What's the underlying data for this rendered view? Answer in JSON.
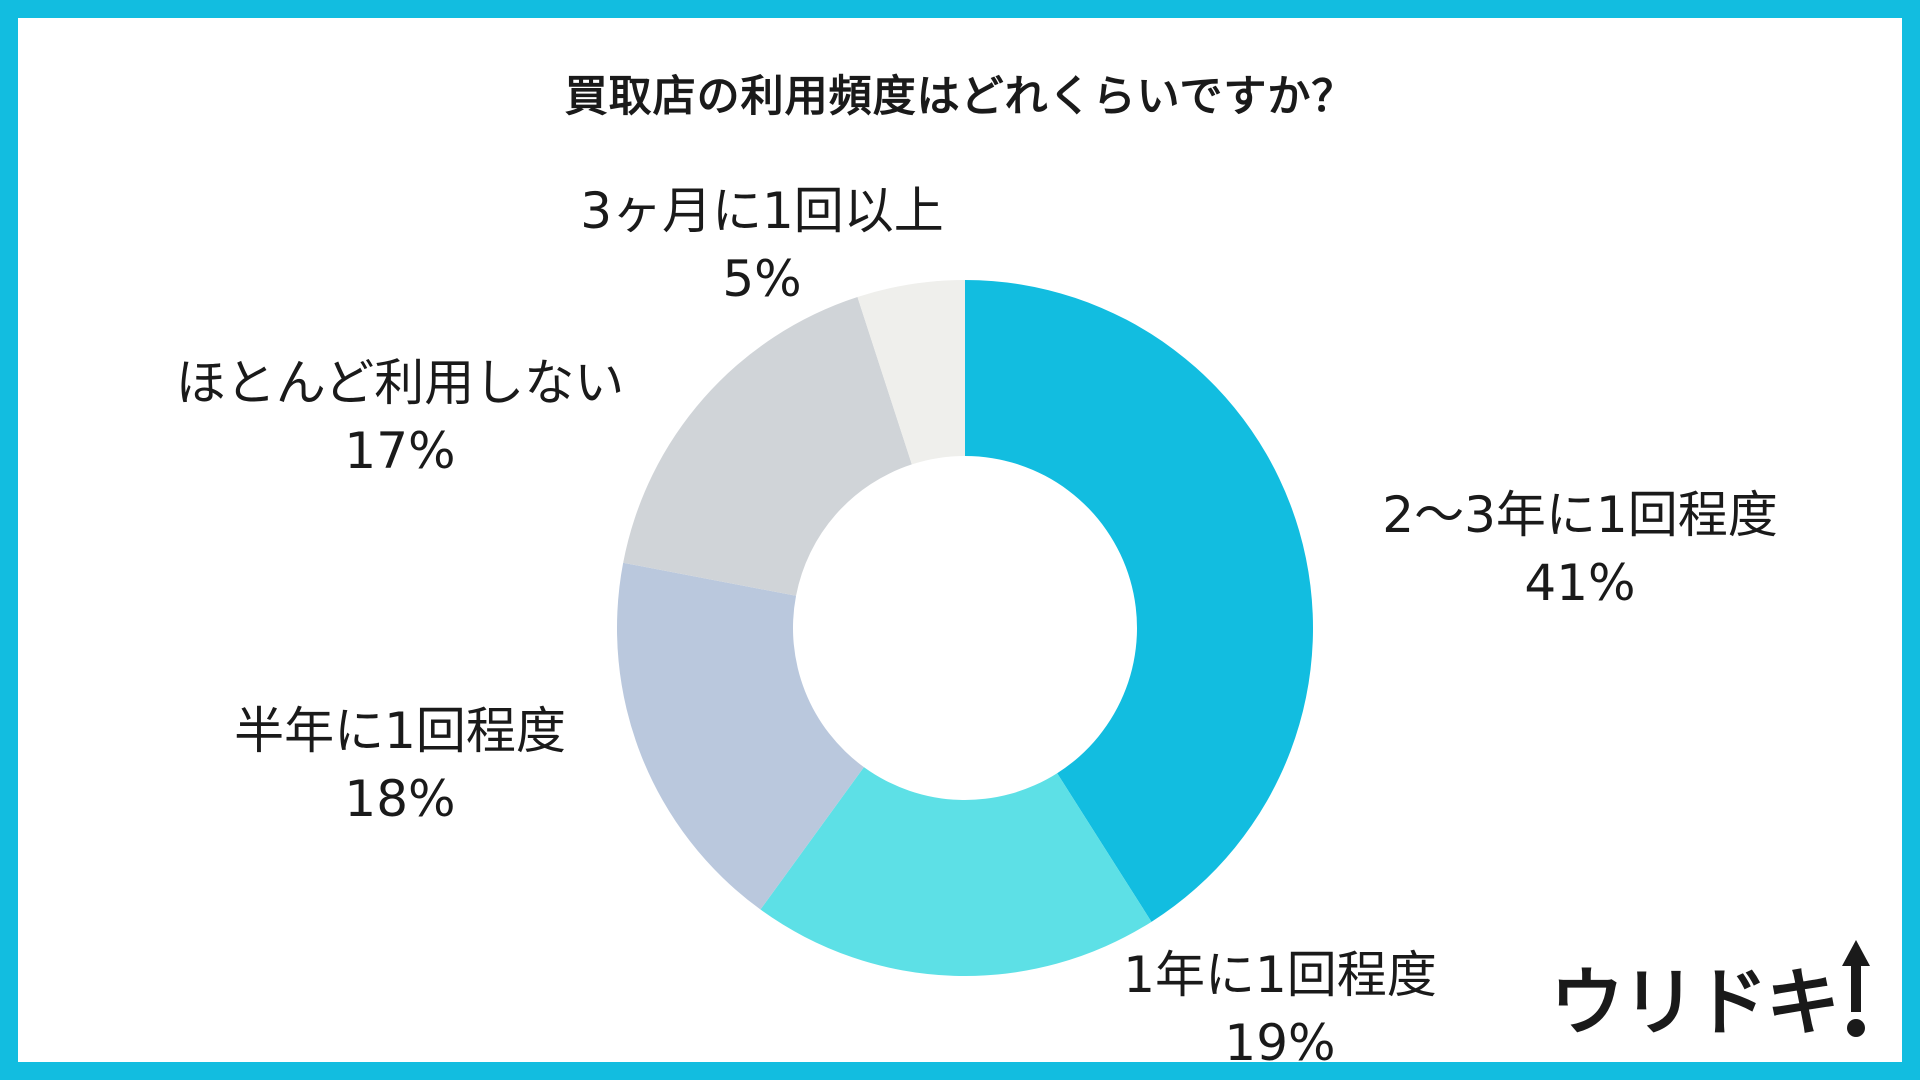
{
  "chart_data": {
    "type": "pie",
    "title": "買取店の利用頻度はどれくらいですか？",
    "slices": [
      {
        "label": "2〜3年に1回程度",
        "value": 41,
        "value_label": "41%",
        "color": "#12bde0"
      },
      {
        "label": "1年に1回程度",
        "value": 19,
        "value_label": "19%",
        "color": "#5de0e6"
      },
      {
        "label": "半年に1回程度",
        "value": 18,
        "value_label": "18%",
        "color": "#bac8dd"
      },
      {
        "label": "ほとんど利用しない",
        "value": 17,
        "value_label": "17%",
        "color": "#d0d4d8"
      },
      {
        "label": "3ヶ月に1回以上",
        "value": 5,
        "value_label": "5%",
        "color": "#efefec"
      }
    ],
    "donut": true,
    "start": "top",
    "direction": "clockwise",
    "legend": "none"
  },
  "brand": {
    "logo_text": "ウリドキ",
    "color": "#1a1a1a"
  },
  "colors": {
    "border": "#12bde0",
    "background": "#ffffff"
  }
}
